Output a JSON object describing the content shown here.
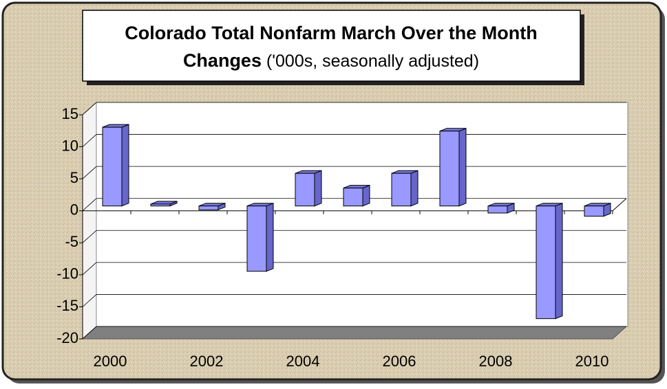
{
  "chart_data": {
    "type": "bar",
    "title": [
      "Colorado Total Nonfarm March Over the Month",
      "Changes"
    ],
    "subtitle": "('000s, seasonally adjusted)",
    "categories": [
      "2000",
      null,
      "2002",
      null,
      "2004",
      null,
      "2006",
      null,
      "2008",
      null,
      "2010"
    ],
    "values": [
      12.3,
      0.3,
      -0.6,
      -10.2,
      5.1,
      2.8,
      5.1,
      11.7,
      -1.1,
      -17.6,
      -1.6
    ],
    "color": "#9999ff",
    "ylim": [
      -20,
      15
    ],
    "yticks": [
      15,
      10,
      5,
      0,
      -5,
      -10,
      -15,
      -20
    ],
    "grid": true
  }
}
